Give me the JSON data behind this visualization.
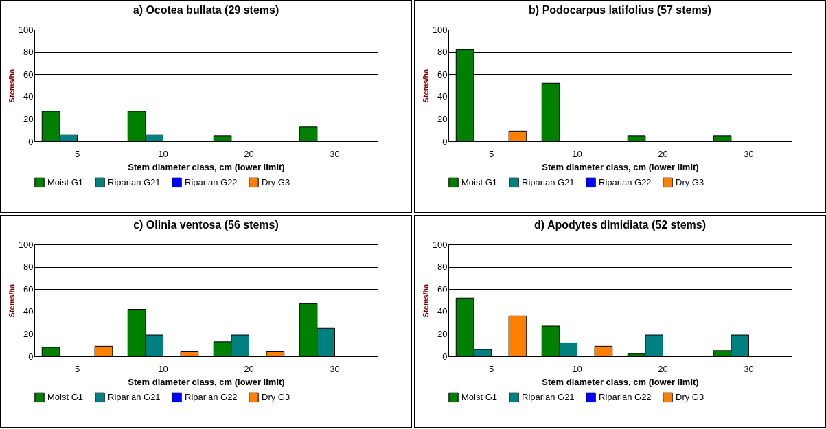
{
  "chart_data": [
    {
      "type": "bar",
      "title": "a) Ocotea bullata (29 stems)",
      "xlabel": "Stem diameter class, cm (lower limit)",
      "ylabel": "Stems/ha",
      "categories": [
        "5",
        "10",
        "20",
        "30"
      ],
      "ylim": [
        0,
        100
      ],
      "yticks": [
        0,
        20,
        40,
        60,
        80,
        100
      ],
      "grid": "y",
      "legend": "bottom",
      "series": [
        {
          "name": "Moist G1",
          "color": "#008000",
          "values": [
            27,
            27,
            5,
            13
          ]
        },
        {
          "name": "Riparian G21",
          "color": "#008080",
          "values": [
            6,
            6,
            null,
            null
          ]
        },
        {
          "name": "Riparian G22",
          "color": "#0000ff",
          "values": [
            null,
            null,
            null,
            null
          ]
        },
        {
          "name": "Dry G3",
          "color": "#ff8000",
          "values": [
            null,
            null,
            null,
            null
          ]
        }
      ]
    },
    {
      "type": "bar",
      "title": "b) Podocarpus latifolius (57 stems)",
      "xlabel": "Stem diameter class, cm (lower limit)",
      "ylabel": "Stems/ha",
      "categories": [
        "5",
        "10",
        "20",
        "30"
      ],
      "ylim": [
        0,
        100
      ],
      "yticks": [
        0,
        20,
        40,
        60,
        80,
        100
      ],
      "grid": "y",
      "legend": "bottom",
      "series": [
        {
          "name": "Moist G1",
          "color": "#008000",
          "values": [
            82,
            52,
            5,
            5
          ]
        },
        {
          "name": "Riparian G21",
          "color": "#008080",
          "values": [
            null,
            null,
            null,
            null
          ]
        },
        {
          "name": "Riparian G22",
          "color": "#0000ff",
          "values": [
            null,
            null,
            null,
            null
          ]
        },
        {
          "name": "Dry G3",
          "color": "#ff8000",
          "values": [
            9,
            null,
            null,
            null
          ]
        }
      ]
    },
    {
      "type": "bar",
      "title": "c) Olinia ventosa (56 stems)",
      "xlabel": "Stem diameter class, cm (lower limit)",
      "ylabel": "Stems/ha",
      "categories": [
        "5",
        "10",
        "20",
        "30"
      ],
      "ylim": [
        0,
        100
      ],
      "yticks": [
        0,
        20,
        40,
        60,
        80,
        100
      ],
      "grid": "y",
      "legend": "bottom",
      "series": [
        {
          "name": "Moist G1",
          "color": "#008000",
          "values": [
            8,
            42,
            13,
            47
          ]
        },
        {
          "name": "Riparian G21",
          "color": "#008080",
          "values": [
            null,
            19,
            19,
            25
          ]
        },
        {
          "name": "Riparian G22",
          "color": "#0000ff",
          "values": [
            null,
            null,
            null,
            null
          ]
        },
        {
          "name": "Dry G3",
          "color": "#ff8000",
          "values": [
            9,
            4,
            4,
            null
          ]
        }
      ]
    },
    {
      "type": "bar",
      "title": "d) Apodytes dimidiata (52 stems)",
      "xlabel": "Stem diameter class, cm (lower limit)",
      "ylabel": "Stems/ha",
      "categories": [
        "5",
        "10",
        "20",
        "30"
      ],
      "ylim": [
        0,
        100
      ],
      "yticks": [
        0,
        20,
        40,
        60,
        80,
        100
      ],
      "grid": "y",
      "legend": "bottom",
      "series": [
        {
          "name": "Moist G1",
          "color": "#008000",
          "values": [
            52,
            27,
            2,
            5
          ]
        },
        {
          "name": "Riparian G21",
          "color": "#008080",
          "values": [
            6,
            12,
            19,
            19
          ]
        },
        {
          "name": "Riparian G22",
          "color": "#0000ff",
          "values": [
            null,
            null,
            null,
            null
          ]
        },
        {
          "name": "Dry G3",
          "color": "#ff8000",
          "values": [
            36,
            9,
            null,
            null
          ]
        }
      ]
    }
  ]
}
